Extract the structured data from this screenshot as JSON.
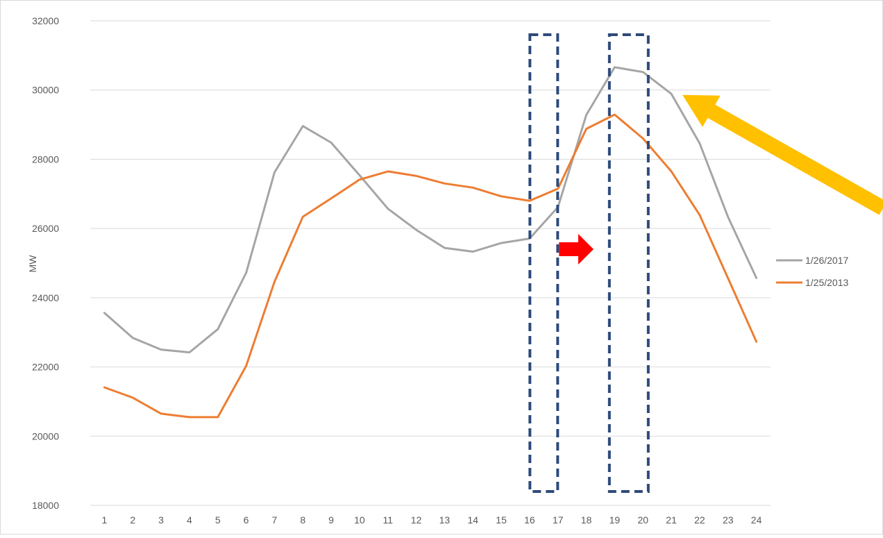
{
  "chart_data": {
    "type": "line",
    "title": "",
    "xlabel": "",
    "ylabel": "MW",
    "categories": [
      "1",
      "2",
      "3",
      "4",
      "5",
      "6",
      "7",
      "8",
      "9",
      "10",
      "11",
      "12",
      "13",
      "14",
      "15",
      "16",
      "17",
      "18",
      "19",
      "20",
      "21",
      "22",
      "23",
      "24"
    ],
    "ylim": [
      18000,
      32000
    ],
    "yticks": [
      18000,
      20000,
      22000,
      24000,
      26000,
      28000,
      30000,
      32000
    ],
    "grid": true,
    "legend_position": "right",
    "series": [
      {
        "name": "1/26/2017",
        "color": "#a5a5a5",
        "values": [
          23560,
          22840,
          22500,
          22420,
          23090,
          24720,
          27620,
          28960,
          28480,
          27540,
          26570,
          25960,
          25440,
          25330,
          25580,
          25710,
          26620,
          29280,
          30660,
          30520,
          29890,
          28460,
          26330,
          24570
        ]
      },
      {
        "name": "1/25/2013",
        "color": "#ed7d31",
        "values": [
          21410,
          21110,
          20650,
          20550,
          20550,
          22030,
          24460,
          26340,
          26870,
          27410,
          27650,
          27520,
          27300,
          27180,
          26930,
          26800,
          27150,
          28880,
          29290,
          28600,
          27650,
          26390,
          24560,
          22730
        ]
      }
    ],
    "annotations": {
      "highlight_boxes_at_categories": [
        "16",
        "19"
      ],
      "box_color": "#2e4a7a",
      "red_arrow": {
        "color": "#ff0000",
        "direction": "right",
        "from_category": "16",
        "to_category": "19"
      },
      "yellow_arrow": {
        "color": "#ffc000",
        "points_to_category": "21"
      }
    }
  }
}
